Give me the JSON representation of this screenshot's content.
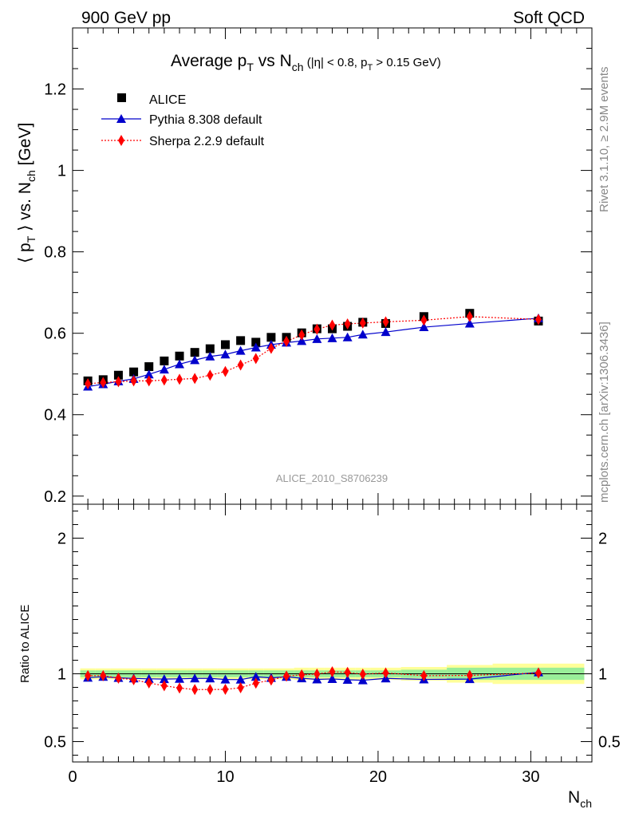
{
  "header": {
    "left": "900 GeV pp",
    "right": "Soft QCD"
  },
  "side_labels": {
    "rivet": "Rivet 3.1.10, ≥ 2.9M events",
    "mcplots": "mcplots.cern.ch [arXiv:1306.3436]"
  },
  "chart_data": [
    {
      "type": "scatter",
      "title": "Average pT vs Nch (|η| < 0.8, pT > 0.15 GeV)",
      "title_parts": {
        "main": "Average p",
        "sub_t": "T",
        "vs": " vs N",
        "sub_ch": "ch",
        "cuts": " (|η| < 0.8, p",
        "cuts_sub": "T",
        "cuts_end": " > 0.15 GeV)"
      },
      "ylabel": "⟨ pT ⟩ vs. Nch [GeV]",
      "ylabel_parts": {
        "a": "⟨ p",
        "b": "T",
        "c": " ⟩ vs. N",
        "d": "ch",
        "e": " [GeV]"
      },
      "xlim": [
        0,
        34
      ],
      "ylim": [
        0.18,
        1.35
      ],
      "yticks": [
        "0.2",
        "0.4",
        "0.6",
        "0.8",
        "1",
        "1.2"
      ],
      "watermark": "ALICE_2010_S8706239",
      "legend_position": "top-left",
      "series": [
        {
          "name": "ALICE",
          "color": "#000000",
          "marker": "square",
          "x": [
            1,
            2,
            3,
            4,
            5,
            6,
            7,
            8,
            9,
            10,
            11,
            12,
            13,
            14,
            15,
            16,
            17,
            18,
            19,
            20.5,
            23,
            26,
            30.5
          ],
          "y": [
            0.483,
            0.486,
            0.497,
            0.505,
            0.518,
            0.532,
            0.544,
            0.553,
            0.562,
            0.572,
            0.582,
            0.578,
            0.59,
            0.59,
            0.601,
            0.611,
            0.611,
            0.617,
            0.627,
            0.624,
            0.641,
            0.649,
            0.63
          ]
        },
        {
          "name": "Pythia 8.308 default",
          "color": "#0000cc",
          "marker": "triangle",
          "line": "solid",
          "x": [
            1,
            2,
            3,
            4,
            5,
            6,
            7,
            8,
            9,
            10,
            11,
            12,
            13,
            14,
            15,
            16,
            17,
            18,
            19,
            20.5,
            23,
            26,
            30.5
          ],
          "y": [
            0.469,
            0.475,
            0.482,
            0.488,
            0.499,
            0.511,
            0.524,
            0.534,
            0.543,
            0.548,
            0.557,
            0.565,
            0.572,
            0.577,
            0.581,
            0.586,
            0.588,
            0.59,
            0.597,
            0.603,
            0.615,
            0.624,
            0.637
          ]
        },
        {
          "name": "Sherpa 2.2.9 default",
          "color": "#ff0000",
          "marker": "diamond",
          "line": "dotted",
          "x": [
            1,
            2,
            3,
            4,
            5,
            6,
            7,
            8,
            9,
            10,
            11,
            12,
            13,
            14,
            15,
            16,
            17,
            18,
            19,
            20.5,
            23,
            26,
            30.5
          ],
          "y": [
            0.476,
            0.479,
            0.481,
            0.483,
            0.483,
            0.485,
            0.487,
            0.489,
            0.497,
            0.506,
            0.522,
            0.538,
            0.563,
            0.58,
            0.596,
            0.61,
            0.62,
            0.623,
            0.625,
            0.628,
            0.632,
            0.641,
            0.634
          ]
        }
      ]
    },
    {
      "type": "scatter",
      "ylabel": "Ratio to ALICE",
      "xlabel": "Nch",
      "xlabel_parts": {
        "a": "N",
        "b": "ch"
      },
      "xlim": [
        0,
        34
      ],
      "ylim": [
        0.35,
        2.25
      ],
      "yticks": [
        "0.5",
        "1",
        "2"
      ],
      "xticks": [
        "0",
        "10",
        "20",
        "30"
      ],
      "reference_line": 1,
      "bands": [
        {
          "x0": 0.5,
          "x1": 1.5,
          "y_lo": 0.975,
          "y_hi": 1.025,
          "y_lo_tot": 0.96,
          "y_hi_tot": 1.04
        },
        {
          "x0": 1.5,
          "x1": 2.5,
          "y_lo": 0.975,
          "y_hi": 1.025,
          "y_lo_tot": 0.96,
          "y_hi_tot": 1.04
        },
        {
          "x0": 2.5,
          "x1": 3.5,
          "y_lo": 0.975,
          "y_hi": 1.025,
          "y_lo_tot": 0.96,
          "y_hi_tot": 1.04
        },
        {
          "x0": 3.5,
          "x1": 4.5,
          "y_lo": 0.975,
          "y_hi": 1.025,
          "y_lo_tot": 0.96,
          "y_hi_tot": 1.04
        },
        {
          "x0": 4.5,
          "x1": 5.5,
          "y_lo": 0.975,
          "y_hi": 1.025,
          "y_lo_tot": 0.96,
          "y_hi_tot": 1.04
        },
        {
          "x0": 5.5,
          "x1": 6.5,
          "y_lo": 0.975,
          "y_hi": 1.025,
          "y_lo_tot": 0.96,
          "y_hi_tot": 1.04
        },
        {
          "x0": 6.5,
          "x1": 7.5,
          "y_lo": 0.975,
          "y_hi": 1.025,
          "y_lo_tot": 0.96,
          "y_hi_tot": 1.04
        },
        {
          "x0": 7.5,
          "x1": 8.5,
          "y_lo": 0.975,
          "y_hi": 1.025,
          "y_lo_tot": 0.96,
          "y_hi_tot": 1.04
        },
        {
          "x0": 8.5,
          "x1": 9.5,
          "y_lo": 0.975,
          "y_hi": 1.025,
          "y_lo_tot": 0.96,
          "y_hi_tot": 1.04
        },
        {
          "x0": 9.5,
          "x1": 10.5,
          "y_lo": 0.975,
          "y_hi": 1.025,
          "y_lo_tot": 0.96,
          "y_hi_tot": 1.04
        },
        {
          "x0": 10.5,
          "x1": 11.5,
          "y_lo": 0.975,
          "y_hi": 1.025,
          "y_lo_tot": 0.96,
          "y_hi_tot": 1.04
        },
        {
          "x0": 11.5,
          "x1": 12.5,
          "y_lo": 0.975,
          "y_hi": 1.025,
          "y_lo_tot": 0.96,
          "y_hi_tot": 1.04
        },
        {
          "x0": 12.5,
          "x1": 13.5,
          "y_lo": 0.975,
          "y_hi": 1.025,
          "y_lo_tot": 0.96,
          "y_hi_tot": 1.04
        },
        {
          "x0": 13.5,
          "x1": 14.5,
          "y_lo": 0.975,
          "y_hi": 1.025,
          "y_lo_tot": 0.96,
          "y_hi_tot": 1.04
        },
        {
          "x0": 14.5,
          "x1": 15.5,
          "y_lo": 0.975,
          "y_hi": 1.025,
          "y_lo_tot": 0.955,
          "y_hi_tot": 1.045
        },
        {
          "x0": 15.5,
          "x1": 16.5,
          "y_lo": 0.975,
          "y_hi": 1.025,
          "y_lo_tot": 0.955,
          "y_hi_tot": 1.045
        },
        {
          "x0": 16.5,
          "x1": 17.5,
          "y_lo": 0.975,
          "y_hi": 1.025,
          "y_lo_tot": 0.955,
          "y_hi_tot": 1.045
        },
        {
          "x0": 17.5,
          "x1": 18.5,
          "y_lo": 0.975,
          "y_hi": 1.025,
          "y_lo_tot": 0.955,
          "y_hi_tot": 1.045
        },
        {
          "x0": 18.5,
          "x1": 19.5,
          "y_lo": 0.975,
          "y_hi": 1.025,
          "y_lo_tot": 0.955,
          "y_hi_tot": 1.045
        },
        {
          "x0": 19.5,
          "x1": 21.5,
          "y_lo": 0.975,
          "y_hi": 1.025,
          "y_lo_tot": 0.955,
          "y_hi_tot": 1.045
        },
        {
          "x0": 21.5,
          "x1": 24.5,
          "y_lo": 0.97,
          "y_hi": 1.03,
          "y_lo_tot": 0.95,
          "y_hi_tot": 1.05
        },
        {
          "x0": 24.5,
          "x1": 27.5,
          "y_lo": 0.955,
          "y_hi": 1.045,
          "y_lo_tot": 0.935,
          "y_hi_tot": 1.065
        },
        {
          "x0": 27.5,
          "x1": 33.5,
          "y_lo": 0.955,
          "y_hi": 1.045,
          "y_lo_tot": 0.925,
          "y_hi_tot": 1.075
        }
      ],
      "series": [
        {
          "name": "Pythia 8.308 default",
          "color": "#0000cc",
          "marker": "triangle",
          "line": "solid",
          "x": [
            1,
            2,
            3,
            4,
            5,
            6,
            7,
            8,
            9,
            10,
            11,
            12,
            13,
            14,
            15,
            16,
            17,
            18,
            19,
            20.5,
            23,
            26,
            30.5
          ],
          "y": [
            0.971,
            0.978,
            0.97,
            0.966,
            0.963,
            0.961,
            0.963,
            0.966,
            0.966,
            0.958,
            0.957,
            0.978,
            0.97,
            0.978,
            0.967,
            0.959,
            0.962,
            0.956,
            0.952,
            0.966,
            0.959,
            0.961,
            1.011
          ]
        },
        {
          "name": "Sherpa 2.2.9 default",
          "color": "#ff0000",
          "marker": "diamond",
          "line": "dotted",
          "x": [
            1,
            2,
            3,
            4,
            5,
            6,
            7,
            8,
            9,
            10,
            11,
            12,
            13,
            14,
            15,
            16,
            17,
            18,
            19,
            20.5,
            23,
            26,
            30.5
          ],
          "y": [
            0.986,
            0.986,
            0.968,
            0.956,
            0.932,
            0.912,
            0.895,
            0.884,
            0.884,
            0.885,
            0.897,
            0.931,
            0.954,
            0.983,
            0.992,
            0.998,
            1.015,
            1.01,
            0.997,
            1.006,
            0.986,
            0.988,
            1.006
          ]
        }
      ]
    }
  ]
}
